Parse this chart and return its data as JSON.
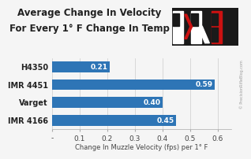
{
  "title_line1": "Average Change In Velocity",
  "title_line2": "For Every 1° F Change In Temp",
  "categories": [
    "H4350",
    "IMR 4451",
    "Varget",
    "IMR 4166"
  ],
  "values": [
    0.21,
    0.59,
    0.4,
    0.45
  ],
  "bar_color": "#2e75b6",
  "bar_text_color": "#ffffff",
  "xlabel": "Change In Muzzle Velocity (fps) per 1° F",
  "xlim": [
    0,
    0.65
  ],
  "xtick_positions": [
    0.0,
    0.1,
    0.2,
    0.3,
    0.4,
    0.5,
    0.6
  ],
  "xtick_labels": [
    "-",
    "0.1",
    "0.2",
    "0.3",
    "0.4",
    "0.5",
    "0.6"
  ],
  "background_color": "#f5f5f5",
  "grid_color": "#cccccc",
  "title_fontsize": 8.5,
  "label_fontsize": 7,
  "bar_label_fontsize": 6.5,
  "xlabel_fontsize": 6,
  "watermark": "© PrecisionRifleBlog.com",
  "logo_bg": "#1a1a1a",
  "logo_red": "#cc1111",
  "logo_white": "#ffffff"
}
